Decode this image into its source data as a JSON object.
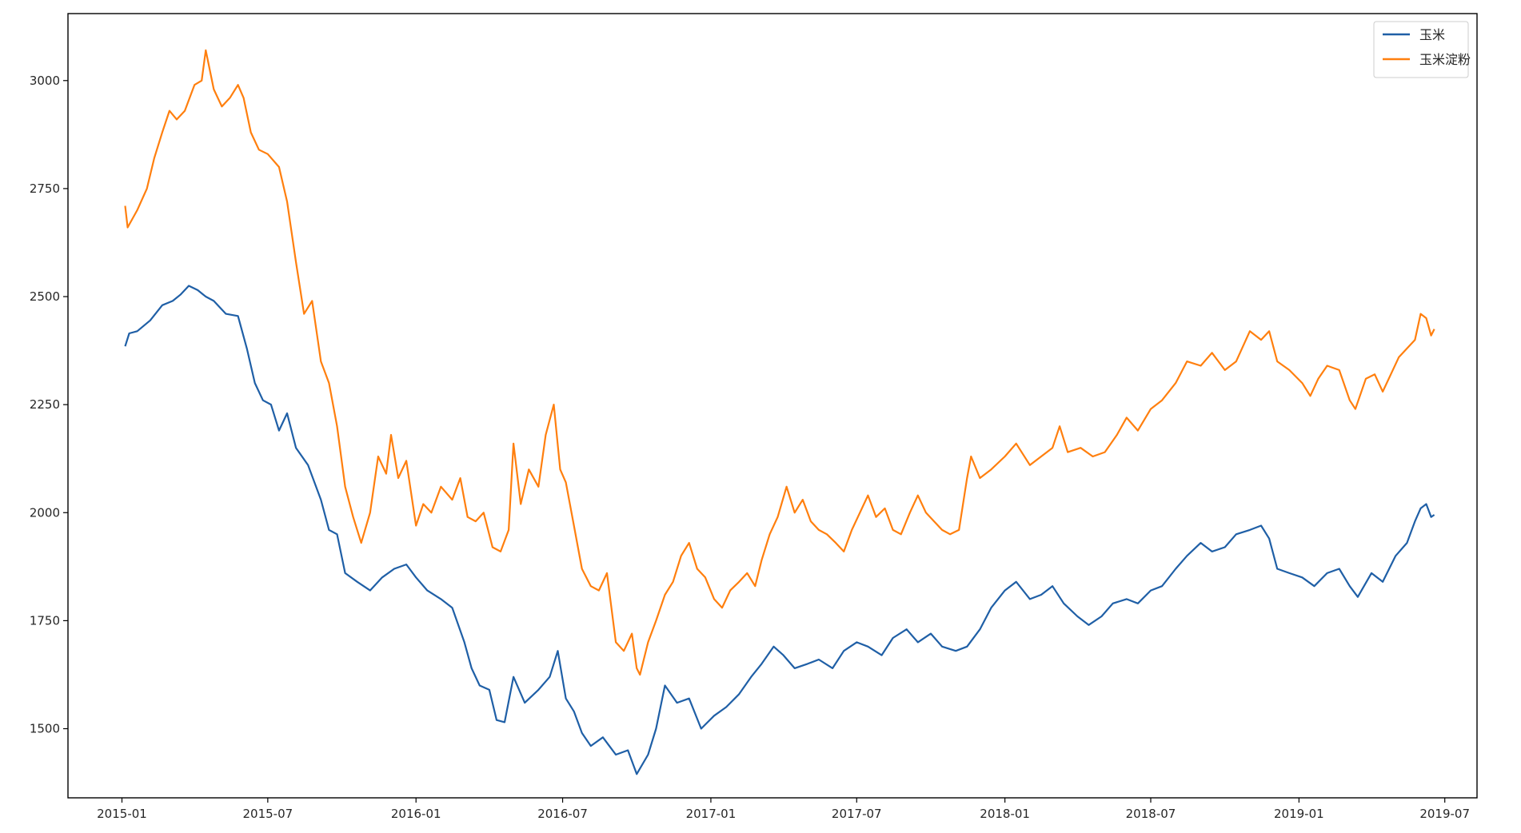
{
  "chart_data": {
    "type": "line",
    "title": "",
    "xlabel": "",
    "ylabel": "",
    "x_ticks": [
      "2015-01",
      "2015-07",
      "2016-01",
      "2016-07",
      "2017-01",
      "2017-07",
      "2018-01",
      "2018-07",
      "2019-01",
      "2019-07"
    ],
    "y_ticks": [
      1500,
      1750,
      2000,
      2250,
      2500,
      2750,
      3000
    ],
    "xlim": [
      "2014-10-26",
      "2019-08-10"
    ],
    "ylim": [
      1340,
      3155
    ],
    "grid": false,
    "legend_position": "top-right",
    "series": [
      {
        "name": "玉米",
        "color": "#1f5fa6",
        "points": [
          [
            "2015-01-05",
            2385
          ],
          [
            "2015-01-10",
            2415
          ],
          [
            "2015-01-20",
            2420
          ],
          [
            "2015-02-05",
            2445
          ],
          [
            "2015-02-20",
            2480
          ],
          [
            "2015-03-05",
            2490
          ],
          [
            "2015-03-15",
            2505
          ],
          [
            "2015-03-25",
            2525
          ],
          [
            "2015-04-05",
            2515
          ],
          [
            "2015-04-15",
            2500
          ],
          [
            "2015-04-25",
            2490
          ],
          [
            "2015-05-10",
            2460
          ],
          [
            "2015-05-25",
            2455
          ],
          [
            "2015-06-05",
            2380
          ],
          [
            "2015-06-15",
            2300
          ],
          [
            "2015-06-25",
            2260
          ],
          [
            "2015-07-05",
            2250
          ],
          [
            "2015-07-15",
            2190
          ],
          [
            "2015-07-25",
            2230
          ],
          [
            "2015-08-05",
            2150
          ],
          [
            "2015-08-20",
            2110
          ],
          [
            "2015-09-05",
            2030
          ],
          [
            "2015-09-15",
            1960
          ],
          [
            "2015-09-25",
            1950
          ],
          [
            "2015-10-05",
            1860
          ],
          [
            "2015-10-20",
            1840
          ],
          [
            "2015-11-05",
            1820
          ],
          [
            "2015-11-20",
            1850
          ],
          [
            "2015-12-05",
            1870
          ],
          [
            "2015-12-20",
            1880
          ],
          [
            "2016-01-01",
            1850
          ],
          [
            "2016-01-15",
            1820
          ],
          [
            "2016-02-01",
            1800
          ],
          [
            "2016-02-15",
            1780
          ],
          [
            "2016-03-01",
            1700
          ],
          [
            "2016-03-10",
            1640
          ],
          [
            "2016-03-20",
            1600
          ],
          [
            "2016-04-01",
            1590
          ],
          [
            "2016-04-10",
            1520
          ],
          [
            "2016-04-20",
            1515
          ],
          [
            "2016-05-01",
            1620
          ],
          [
            "2016-05-15",
            1560
          ],
          [
            "2016-06-01",
            1590
          ],
          [
            "2016-06-15",
            1620
          ],
          [
            "2016-06-25",
            1680
          ],
          [
            "2016-07-05",
            1570
          ],
          [
            "2016-07-15",
            1540
          ],
          [
            "2016-07-25",
            1490
          ],
          [
            "2016-08-05",
            1460
          ],
          [
            "2016-08-20",
            1480
          ],
          [
            "2016-09-05",
            1440
          ],
          [
            "2016-09-20",
            1450
          ],
          [
            "2016-10-01",
            1395
          ],
          [
            "2016-10-15",
            1440
          ],
          [
            "2016-10-25",
            1500
          ],
          [
            "2016-11-05",
            1600
          ],
          [
            "2016-11-20",
            1560
          ],
          [
            "2016-12-05",
            1570
          ],
          [
            "2016-12-20",
            1500
          ],
          [
            "2017-01-05",
            1530
          ],
          [
            "2017-01-20",
            1550
          ],
          [
            "2017-02-05",
            1580
          ],
          [
            "2017-02-20",
            1620
          ],
          [
            "2017-03-05",
            1650
          ],
          [
            "2017-03-20",
            1690
          ],
          [
            "2017-04-01",
            1670
          ],
          [
            "2017-04-15",
            1640
          ],
          [
            "2017-05-01",
            1650
          ],
          [
            "2017-05-15",
            1660
          ],
          [
            "2017-06-01",
            1640
          ],
          [
            "2017-06-15",
            1680
          ],
          [
            "2017-07-01",
            1700
          ],
          [
            "2017-07-15",
            1690
          ],
          [
            "2017-08-01",
            1670
          ],
          [
            "2017-08-15",
            1710
          ],
          [
            "2017-09-01",
            1730
          ],
          [
            "2017-09-15",
            1700
          ],
          [
            "2017-10-01",
            1720
          ],
          [
            "2017-10-15",
            1690
          ],
          [
            "2017-11-01",
            1680
          ],
          [
            "2017-11-15",
            1690
          ],
          [
            "2017-12-01",
            1730
          ],
          [
            "2017-12-15",
            1780
          ],
          [
            "2018-01-01",
            1820
          ],
          [
            "2018-01-15",
            1840
          ],
          [
            "2018-02-01",
            1800
          ],
          [
            "2018-02-15",
            1810
          ],
          [
            "2018-03-01",
            1830
          ],
          [
            "2018-03-15",
            1790
          ],
          [
            "2018-04-01",
            1760
          ],
          [
            "2018-04-15",
            1740
          ],
          [
            "2018-05-01",
            1760
          ],
          [
            "2018-05-15",
            1790
          ],
          [
            "2018-06-01",
            1800
          ],
          [
            "2018-06-15",
            1790
          ],
          [
            "2018-07-01",
            1820
          ],
          [
            "2018-07-15",
            1830
          ],
          [
            "2018-08-01",
            1870
          ],
          [
            "2018-08-15",
            1900
          ],
          [
            "2018-09-01",
            1930
          ],
          [
            "2018-09-15",
            1910
          ],
          [
            "2018-10-01",
            1920
          ],
          [
            "2018-10-15",
            1950
          ],
          [
            "2018-11-01",
            1960
          ],
          [
            "2018-11-15",
            1970
          ],
          [
            "2018-11-25",
            1940
          ],
          [
            "2018-12-05",
            1870
          ],
          [
            "2018-12-20",
            1860
          ],
          [
            "2019-01-05",
            1850
          ],
          [
            "2019-01-20",
            1830
          ],
          [
            "2019-02-05",
            1860
          ],
          [
            "2019-02-20",
            1870
          ],
          [
            "2019-03-05",
            1830
          ],
          [
            "2019-03-15",
            1805
          ],
          [
            "2019-04-01",
            1860
          ],
          [
            "2019-04-15",
            1840
          ],
          [
            "2019-05-01",
            1900
          ],
          [
            "2019-05-15",
            1930
          ],
          [
            "2019-05-25",
            1980
          ],
          [
            "2019-06-01",
            2010
          ],
          [
            "2019-06-08",
            2020
          ],
          [
            "2019-06-14",
            1990
          ],
          [
            "2019-06-18",
            1995
          ]
        ]
      },
      {
        "name": "玉米淀粉",
        "color": "#ff7f0e",
        "points": [
          [
            "2015-01-05",
            2710
          ],
          [
            "2015-01-08",
            2660
          ],
          [
            "2015-01-20",
            2700
          ],
          [
            "2015-02-01",
            2750
          ],
          [
            "2015-02-10",
            2820
          ],
          [
            "2015-02-20",
            2880
          ],
          [
            "2015-03-01",
            2930
          ],
          [
            "2015-03-10",
            2910
          ],
          [
            "2015-03-20",
            2930
          ],
          [
            "2015-04-01",
            2990
          ],
          [
            "2015-04-10",
            3000
          ],
          [
            "2015-04-15",
            3070
          ],
          [
            "2015-04-25",
            2980
          ],
          [
            "2015-05-05",
            2940
          ],
          [
            "2015-05-15",
            2960
          ],
          [
            "2015-05-25",
            2990
          ],
          [
            "2015-06-01",
            2960
          ],
          [
            "2015-06-10",
            2880
          ],
          [
            "2015-06-20",
            2840
          ],
          [
            "2015-07-01",
            2830
          ],
          [
            "2015-07-15",
            2800
          ],
          [
            "2015-07-25",
            2720
          ],
          [
            "2015-08-05",
            2580
          ],
          [
            "2015-08-15",
            2460
          ],
          [
            "2015-08-25",
            2490
          ],
          [
            "2015-09-05",
            2350
          ],
          [
            "2015-09-15",
            2300
          ],
          [
            "2015-09-25",
            2200
          ],
          [
            "2015-10-05",
            2060
          ],
          [
            "2015-10-15",
            1990
          ],
          [
            "2015-10-25",
            1930
          ],
          [
            "2015-11-05",
            2000
          ],
          [
            "2015-11-15",
            2130
          ],
          [
            "2015-11-25",
            2090
          ],
          [
            "2015-12-01",
            2180
          ],
          [
            "2015-12-10",
            2080
          ],
          [
            "2015-12-20",
            2120
          ],
          [
            "2016-01-01",
            1970
          ],
          [
            "2016-01-10",
            2020
          ],
          [
            "2016-01-20",
            2000
          ],
          [
            "2016-02-01",
            2060
          ],
          [
            "2016-02-15",
            2030
          ],
          [
            "2016-02-25",
            2080
          ],
          [
            "2016-03-05",
            1990
          ],
          [
            "2016-03-15",
            1980
          ],
          [
            "2016-03-25",
            2000
          ],
          [
            "2016-04-05",
            1920
          ],
          [
            "2016-04-15",
            1910
          ],
          [
            "2016-04-25",
            1960
          ],
          [
            "2016-05-01",
            2160
          ],
          [
            "2016-05-10",
            2020
          ],
          [
            "2016-05-20",
            2100
          ],
          [
            "2016-06-01",
            2060
          ],
          [
            "2016-06-10",
            2180
          ],
          [
            "2016-06-20",
            2250
          ],
          [
            "2016-06-28",
            2100
          ],
          [
            "2016-07-05",
            2070
          ],
          [
            "2016-07-15",
            1970
          ],
          [
            "2016-07-25",
            1870
          ],
          [
            "2016-08-05",
            1830
          ],
          [
            "2016-08-15",
            1820
          ],
          [
            "2016-08-25",
            1860
          ],
          [
            "2016-09-05",
            1700
          ],
          [
            "2016-09-15",
            1680
          ],
          [
            "2016-09-25",
            1720
          ],
          [
            "2016-10-01",
            1640
          ],
          [
            "2016-10-05",
            1625
          ],
          [
            "2016-10-15",
            1700
          ],
          [
            "2016-10-25",
            1750
          ],
          [
            "2016-11-05",
            1810
          ],
          [
            "2016-11-15",
            1840
          ],
          [
            "2016-11-25",
            1900
          ],
          [
            "2016-12-05",
            1930
          ],
          [
            "2016-12-15",
            1870
          ],
          [
            "2016-12-25",
            1850
          ],
          [
            "2017-01-05",
            1800
          ],
          [
            "2017-01-15",
            1780
          ],
          [
            "2017-01-25",
            1820
          ],
          [
            "2017-02-05",
            1840
          ],
          [
            "2017-02-15",
            1860
          ],
          [
            "2017-02-25",
            1830
          ],
          [
            "2017-03-05",
            1890
          ],
          [
            "2017-03-15",
            1950
          ],
          [
            "2017-03-25",
            1990
          ],
          [
            "2017-04-05",
            2060
          ],
          [
            "2017-04-15",
            2000
          ],
          [
            "2017-04-25",
            2030
          ],
          [
            "2017-05-05",
            1980
          ],
          [
            "2017-05-15",
            1960
          ],
          [
            "2017-05-25",
            1950
          ],
          [
            "2017-06-05",
            1930
          ],
          [
            "2017-06-15",
            1910
          ],
          [
            "2017-06-25",
            1960
          ],
          [
            "2017-07-05",
            2000
          ],
          [
            "2017-07-15",
            2040
          ],
          [
            "2017-07-25",
            1990
          ],
          [
            "2017-08-05",
            2010
          ],
          [
            "2017-08-15",
            1960
          ],
          [
            "2017-08-25",
            1950
          ],
          [
            "2017-09-05",
            2000
          ],
          [
            "2017-09-15",
            2040
          ],
          [
            "2017-09-25",
            2000
          ],
          [
            "2017-10-05",
            1980
          ],
          [
            "2017-10-15",
            1960
          ],
          [
            "2017-10-25",
            1950
          ],
          [
            "2017-11-05",
            1960
          ],
          [
            "2017-11-15",
            2080
          ],
          [
            "2017-11-20",
            2130
          ],
          [
            "2017-12-01",
            2080
          ],
          [
            "2017-12-15",
            2100
          ],
          [
            "2018-01-01",
            2130
          ],
          [
            "2018-01-15",
            2160
          ],
          [
            "2018-02-01",
            2110
          ],
          [
            "2018-02-15",
            2130
          ],
          [
            "2018-03-01",
            2150
          ],
          [
            "2018-03-10",
            2200
          ],
          [
            "2018-03-20",
            2140
          ],
          [
            "2018-04-05",
            2150
          ],
          [
            "2018-04-20",
            2130
          ],
          [
            "2018-05-05",
            2140
          ],
          [
            "2018-05-20",
            2180
          ],
          [
            "2018-06-01",
            2220
          ],
          [
            "2018-06-15",
            2190
          ],
          [
            "2018-07-01",
            2240
          ],
          [
            "2018-07-15",
            2260
          ],
          [
            "2018-08-01",
            2300
          ],
          [
            "2018-08-15",
            2350
          ],
          [
            "2018-09-01",
            2340
          ],
          [
            "2018-09-15",
            2370
          ],
          [
            "2018-10-01",
            2330
          ],
          [
            "2018-10-15",
            2350
          ],
          [
            "2018-11-01",
            2420
          ],
          [
            "2018-11-15",
            2400
          ],
          [
            "2018-11-25",
            2420
          ],
          [
            "2018-12-05",
            2350
          ],
          [
            "2018-12-20",
            2330
          ],
          [
            "2019-01-05",
            2300
          ],
          [
            "2019-01-15",
            2270
          ],
          [
            "2019-01-25",
            2310
          ],
          [
            "2019-02-05",
            2340
          ],
          [
            "2019-02-20",
            2330
          ],
          [
            "2019-03-05",
            2260
          ],
          [
            "2019-03-12",
            2240
          ],
          [
            "2019-03-25",
            2310
          ],
          [
            "2019-04-05",
            2320
          ],
          [
            "2019-04-15",
            2280
          ],
          [
            "2019-04-25",
            2320
          ],
          [
            "2019-05-05",
            2360
          ],
          [
            "2019-05-15",
            2380
          ],
          [
            "2019-05-25",
            2400
          ],
          [
            "2019-06-01",
            2460
          ],
          [
            "2019-06-08",
            2450
          ],
          [
            "2019-06-14",
            2410
          ],
          [
            "2019-06-18",
            2425
          ]
        ]
      }
    ]
  }
}
